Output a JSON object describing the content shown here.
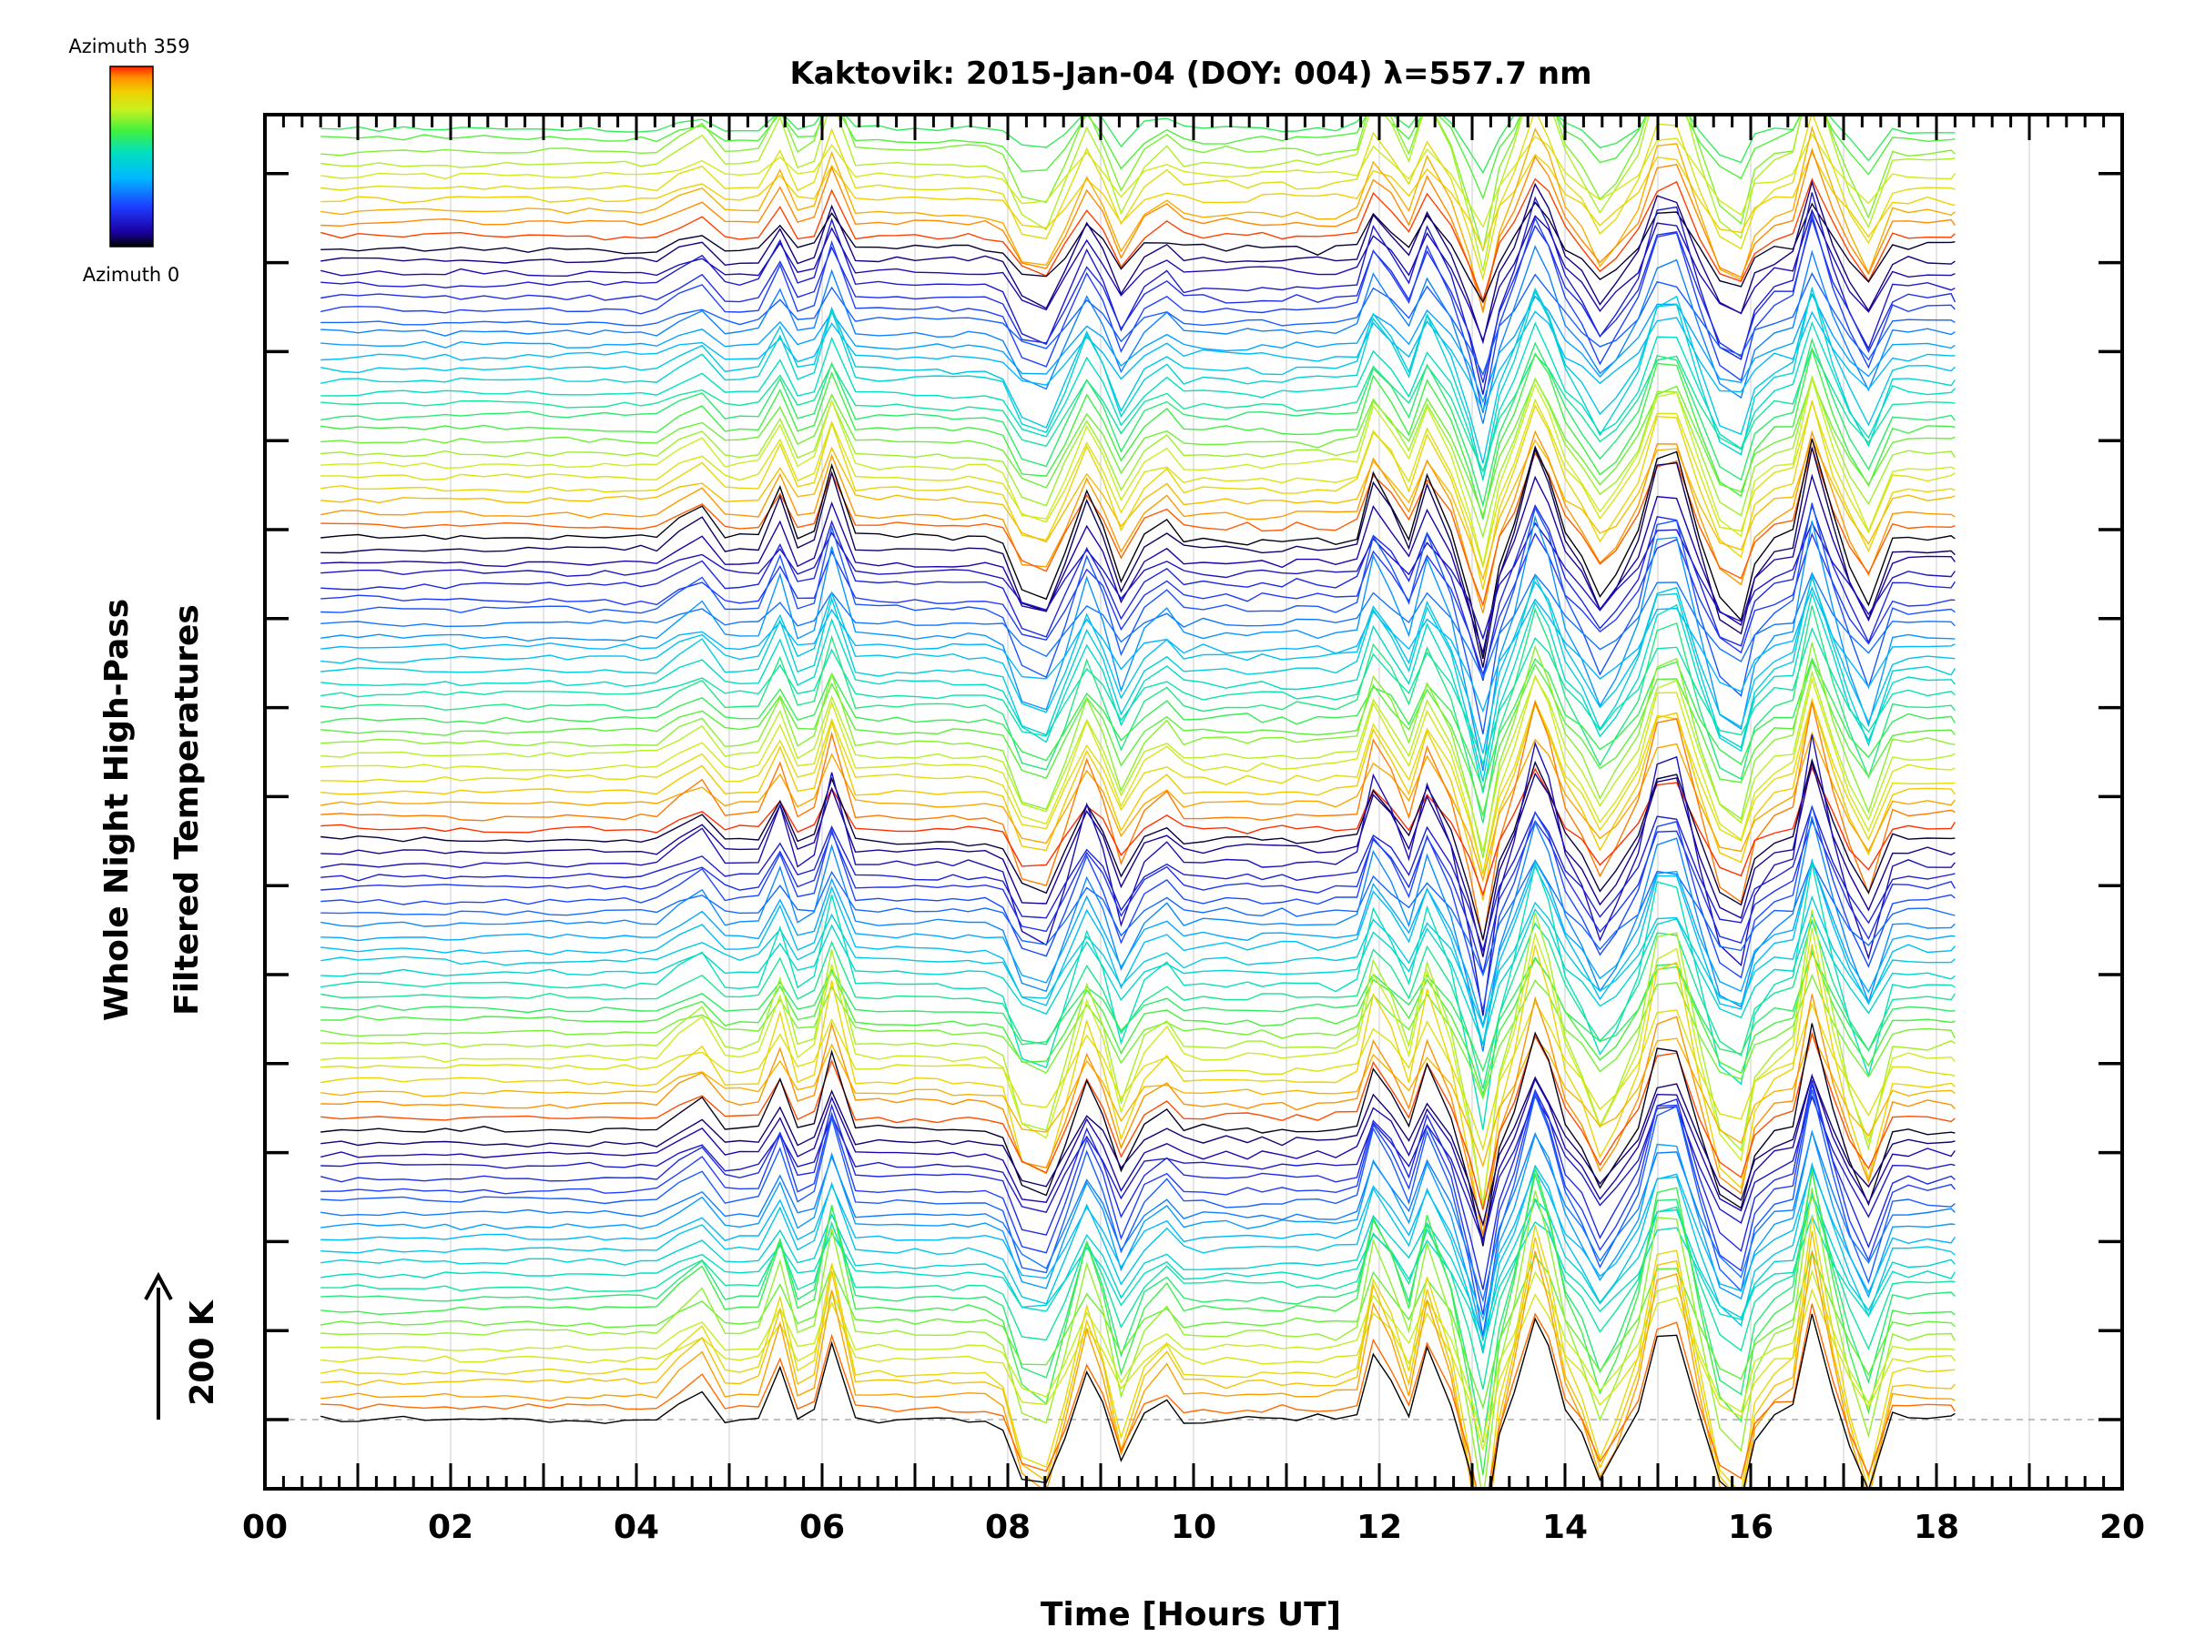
{
  "chart_data": {
    "type": "line",
    "title": "Kaktovik: 2015-Jan-04 (DOY: 004) λ=557.7 nm",
    "xlabel": "Time [Hours UT]",
    "ylabel_line1": "Whole Night High-Pass",
    "ylabel_line2": "Filtered Temperatures",
    "scale_label": "200 K",
    "xlim": [
      0,
      20
    ],
    "x_tick_labels": [
      "00",
      "02",
      "04",
      "06",
      "08",
      "10",
      "12",
      "14",
      "16",
      "18",
      "20"
    ],
    "x_tick_values": [
      0,
      2,
      4,
      6,
      8,
      10,
      12,
      14,
      16,
      18,
      20
    ],
    "vertical_grid": true,
    "colorbar": {
      "top_label": "Azimuth 359",
      "bottom_label": "Azimuth 0",
      "colormap": "rainbow",
      "range": [
        0,
        359
      ]
    },
    "time_range_of_data": [
      0.6,
      18.2
    ],
    "n_series_shown": 108,
    "azimuth_colors": [
      "#000000",
      "#1a00a0",
      "#1f3cff",
      "#00b8ff",
      "#00e0c0",
      "#40f040",
      "#c8f020",
      "#f0d000",
      "#ff8c00",
      "#ff2000"
    ]
  }
}
